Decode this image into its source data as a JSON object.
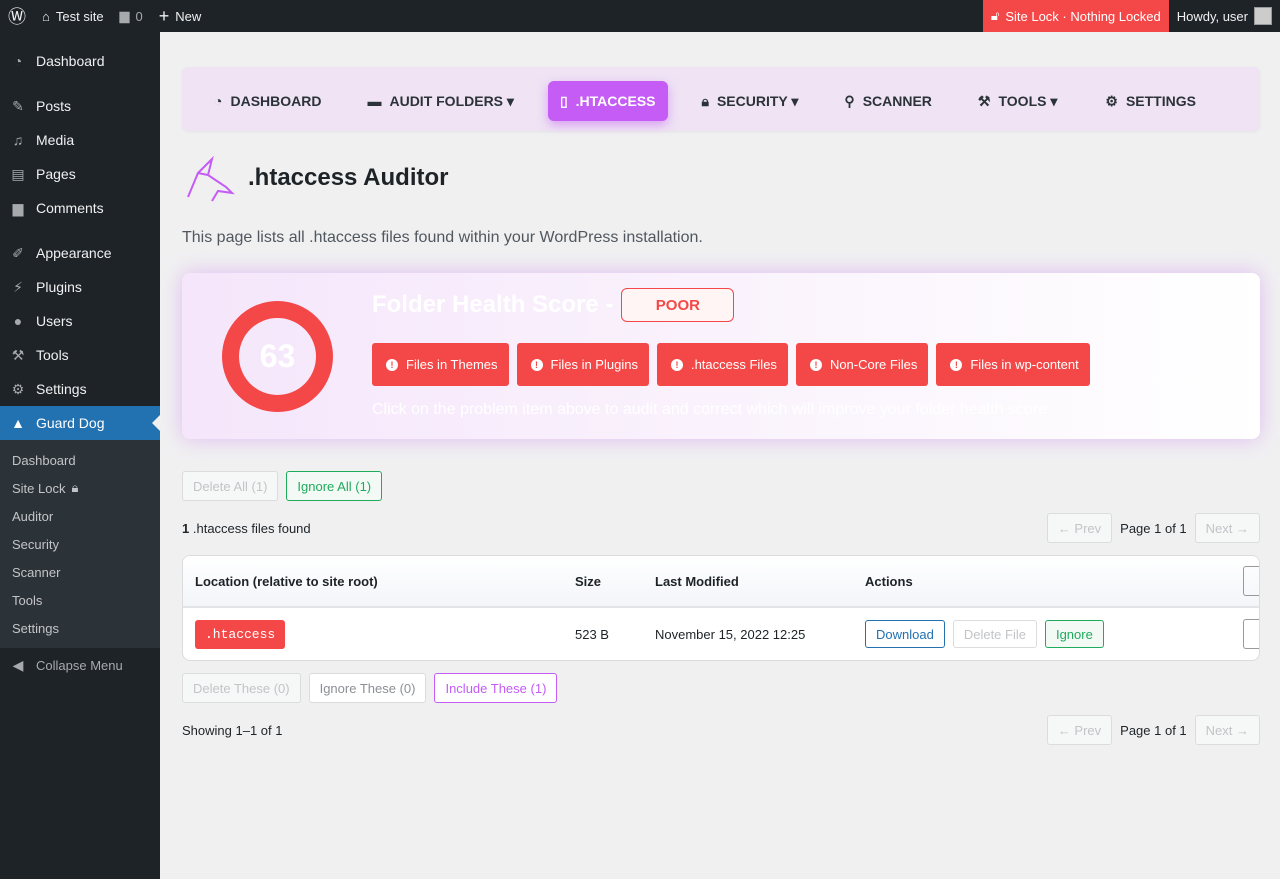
{
  "adminbar": {
    "site": "Test site",
    "comments": "0",
    "new": "New",
    "sitelock": "Site Lock · Nothing Locked",
    "howdy": "Howdy, user"
  },
  "sidebar": {
    "items": [
      "Dashboard",
      "Posts",
      "Media",
      "Pages",
      "Comments",
      "Appearance",
      "Plugins",
      "Users",
      "Tools",
      "Settings",
      "Guard Dog"
    ],
    "sub": [
      "Dashboard",
      "Site Lock",
      "Auditor",
      "Security",
      "Scanner",
      "Tools",
      "Settings"
    ],
    "collapse": "Collapse Menu"
  },
  "nav": {
    "tabs": [
      "DASHBOARD",
      "AUDIT FOLDERS ▾",
      ".HTACCESS",
      "SECURITY ▾",
      "SCANNER",
      "TOOLS ▾",
      "SETTINGS"
    ]
  },
  "page": {
    "title": ".htaccess Auditor",
    "description": "This page lists all .htaccess files found within your WordPress installation."
  },
  "health": {
    "score": "63",
    "title": "Folder Health Score -",
    "rating": "POOR",
    "problems": [
      "Files in Themes",
      "Files in Plugins",
      ".htaccess Files",
      "Non-Core Files",
      "Files in wp-content"
    ],
    "hint": "Click on the problem item above to audit and correct which will improve your folder health score."
  },
  "bulk": {
    "delete_all": "Delete All (1)",
    "ignore_all": "Ignore All (1)"
  },
  "count": {
    "n": "1",
    "label": ".htaccess files found"
  },
  "pager": {
    "prev": "← Prev",
    "page": "Page 1 of 1",
    "next": "Next →"
  },
  "table": {
    "headers": [
      "Location (relative to site root)",
      "Size",
      "Last Modified",
      "Actions"
    ],
    "rows": [
      {
        "location": ".htaccess",
        "size": "523 B",
        "modified": "November 15, 2022 12:25",
        "download": "Download",
        "delete": "Delete File",
        "ignore": "Ignore"
      }
    ]
  },
  "bulk2": {
    "delete": "Delete These (0)",
    "ignore": "Ignore These (0)",
    "include": "Include These (1)"
  },
  "showing": "Showing 1–1 of 1"
}
